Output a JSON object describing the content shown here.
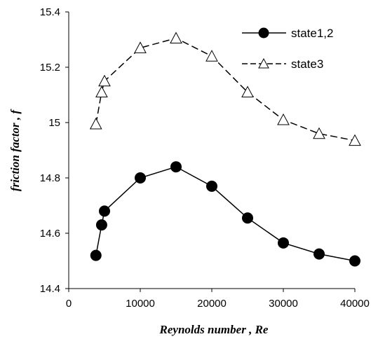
{
  "chart_data": {
    "type": "line",
    "xlabel": "Reynolds number , Re",
    "ylabel": "friction factor , f",
    "xlim": [
      0,
      40000
    ],
    "ylim": [
      14.4,
      15.4
    ],
    "x_ticks": [
      "0",
      "10000",
      "20000",
      "30000",
      "40000"
    ],
    "y_ticks": [
      "14.4",
      "14.6",
      "14.8",
      "15",
      "15.2",
      "15.4"
    ],
    "legend_position": "top-right",
    "grid": false,
    "series": [
      {
        "name": "state1,2",
        "line_style": "solid",
        "marker": "filled-circle",
        "color": "#000000",
        "x": [
          3800,
          4600,
          5000,
          10000,
          15000,
          20000,
          25000,
          30000,
          35000,
          40000
        ],
        "y": [
          14.52,
          14.63,
          14.68,
          14.8,
          14.84,
          14.77,
          14.655,
          14.565,
          14.525,
          14.5
        ]
      },
      {
        "name": "state3",
        "line_style": "dashed",
        "marker": "open-triangle",
        "color": "#000000",
        "x": [
          3800,
          4600,
          5000,
          10000,
          15000,
          20000,
          25000,
          30000,
          35000,
          40000
        ],
        "y": [
          14.995,
          15.11,
          15.15,
          15.27,
          15.305,
          15.24,
          15.11,
          15.01,
          14.96,
          14.935
        ]
      }
    ]
  }
}
